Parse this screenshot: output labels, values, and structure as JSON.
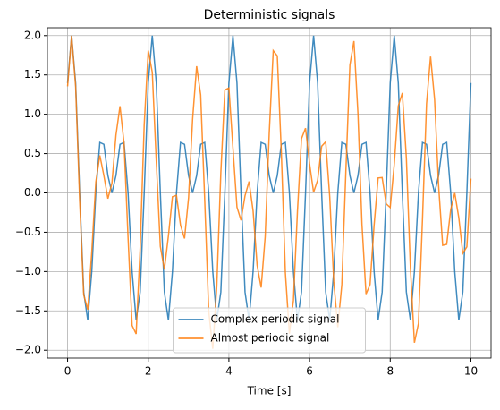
{
  "chart_data": {
    "type": "line",
    "title": "Deterministic signals",
    "x_label": "Time [s]",
    "x": [
      0,
      0.1,
      0.2,
      0.3,
      0.4,
      0.5,
      0.6,
      0.7,
      0.8,
      0.9,
      1,
      1.1,
      1.2,
      1.3,
      1.4,
      1.5,
      1.6,
      1.7,
      1.8,
      1.9,
      2,
      2.1,
      2.2,
      2.3,
      2.4,
      2.5,
      2.6,
      2.7,
      2.8,
      2.9,
      3,
      3.1,
      3.2,
      3.3,
      3.4,
      3.5,
      3.6,
      3.7,
      3.8,
      3.9,
      4,
      4.1,
      4.2,
      4.3,
      4.4,
      4.5,
      4.6,
      4.7,
      4.8,
      4.9,
      5,
      5.1,
      5.2,
      5.3,
      5.4,
      5.5,
      5.6,
      5.7,
      5.8,
      5.9,
      6,
      6.1,
      6.2,
      6.3,
      6.4,
      6.5,
      6.6,
      6.7,
      6.8,
      6.9,
      7,
      7.1,
      7.2,
      7.3,
      7.4,
      7.5,
      7.6,
      7.7,
      7.8,
      7.9,
      8,
      8.1,
      8.2,
      8.3,
      8.4,
      8.5,
      8.6,
      8.7,
      8.8,
      8.9,
      9,
      9.1,
      9.2,
      9.3,
      9.4,
      9.5,
      9.6,
      9.7,
      9.8,
      9.9,
      10
    ],
    "series": [
      {
        "name": "Complex periodic signal",
        "color": "#1f77b4",
        "values": [
          1.397,
          2,
          1.397,
          0,
          -1.26,
          -1.618,
          -1,
          0,
          0.642,
          0.618,
          0.221,
          0,
          0.221,
          0.618,
          0.642,
          0,
          -1,
          -1.618,
          -1.26,
          0,
          1.397,
          2,
          1.397,
          0,
          -1.26,
          -1.618,
          -1,
          0,
          0.642,
          0.618,
          0.221,
          0,
          0.221,
          0.618,
          0.642,
          0,
          -1,
          -1.618,
          -1.26,
          0,
          1.397,
          2,
          1.397,
          0,
          -1.26,
          -1.618,
          -1,
          0,
          0.642,
          0.618,
          0.221,
          0,
          0.221,
          0.618,
          0.642,
          0,
          -1,
          -1.618,
          -1.26,
          0,
          1.397,
          2,
          1.397,
          0,
          -1.26,
          -1.618,
          -1,
          0,
          0.642,
          0.618,
          0.221,
          0,
          0.221,
          0.618,
          0.642,
          0,
          -1,
          -1.618,
          -1.26,
          0,
          1.397,
          2,
          1.397,
          0,
          -1.26,
          -1.618,
          -1,
          0,
          0.642,
          0.618,
          0.221,
          0,
          0.221,
          0.618,
          0.642,
          0,
          -1,
          -1.618,
          -1.26,
          0,
          1.397
        ]
      },
      {
        "name": "Almost periodic signal",
        "color": "#ff7f0e",
        "values": [
          1.355,
          2,
          1.355,
          -0.094,
          -1.296,
          -1.484,
          -0.751,
          0.138,
          0.477,
          0.221,
          -0.073,
          0.124,
          0.734,
          1.103,
          0.634,
          -0.572,
          -1.685,
          -1.794,
          -0.7,
          0.866,
          1.809,
          1.536,
          0.395,
          -0.68,
          -0.975,
          -0.548,
          -0.049,
          -0.031,
          -0.409,
          -0.579,
          -0.061,
          0.937,
          1.611,
          1.248,
          -0.085,
          -1.503,
          -1.982,
          -1.189,
          0.258,
          1.309,
          1.334,
          0.574,
          -0.181,
          -0.348,
          -0.036,
          0.146,
          -0.229,
          -0.922,
          -1.203,
          -0.555,
          0.759,
          1.809,
          1.743,
          0.521,
          -1.012,
          -1.789,
          -1.368,
          -0.231,
          0.69,
          0.823,
          0.372,
          0.008,
          0.162,
          0.594,
          0.65,
          -0.047,
          -1.125,
          -1.708,
          -1.166,
          0.271,
          1.625,
          1.93,
          1.009,
          -0.403,
          -1.286,
          -1.165,
          -0.412,
          0.19,
          0.195,
          -0.139,
          -0.185,
          0.363,
          1.106,
          1.271,
          0.445,
          -0.947,
          -1.905,
          -1.66,
          -0.334,
          1.133,
          1.734,
          1.187,
          0.089,
          -0.666,
          -0.654,
          -0.211,
          -0.002,
          -0.316,
          -0.769,
          -0.686,
          0.181
        ]
      }
    ],
    "xlim": [
      -0.5,
      10.5
    ],
    "xticks": [
      0,
      2,
      4,
      6,
      8,
      10
    ],
    "ylim": [
      -2.1,
      2.1
    ],
    "yticks": [
      {
        "value": -2,
        "label": "−2.0"
      },
      {
        "value": -1.5,
        "label": "−1.5"
      },
      {
        "value": -1,
        "label": "−1.0"
      },
      {
        "value": -0.5,
        "label": "−0.5"
      },
      {
        "value": 0,
        "label": "0.0"
      },
      {
        "value": 0.5,
        "label": "0.5"
      },
      {
        "value": 1,
        "label": "1.0"
      },
      {
        "value": 1.5,
        "label": "1.5"
      },
      {
        "value": 2,
        "label": "2.0"
      }
    ],
    "grid": true,
    "legend": "lower center"
  }
}
